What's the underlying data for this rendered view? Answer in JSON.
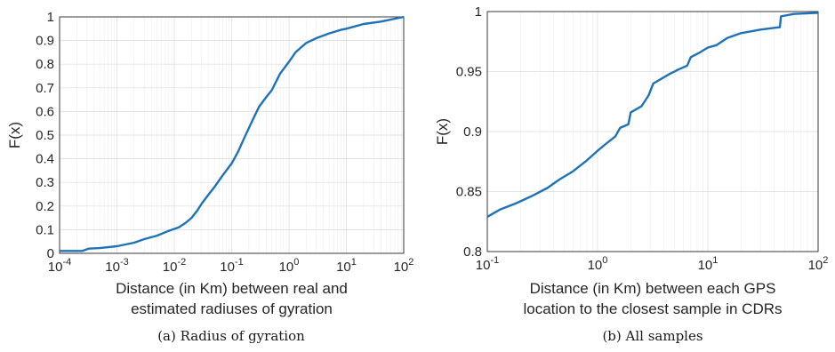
{
  "chart_data": [
    {
      "type": "line",
      "caption": "(a) Radius of gyration",
      "xlabel_lines": [
        "Distance (in Km) between real and",
        "estimated radiuses of gyration"
      ],
      "ylabel": "F(x)",
      "xscale": "log",
      "xlim": [
        0.0001,
        100
      ],
      "ylim": [
        0,
        1
      ],
      "grid": true,
      "xticks": [
        {
          "v": 0.0001,
          "base": "10",
          "exp": "-4"
        },
        {
          "v": 0.001,
          "base": "10",
          "exp": "-3"
        },
        {
          "v": 0.01,
          "base": "10",
          "exp": "-2"
        },
        {
          "v": 0.1,
          "base": "10",
          "exp": "-1"
        },
        {
          "v": 1,
          "base": "10",
          "exp": "0"
        },
        {
          "v": 10,
          "base": "10",
          "exp": "1"
        },
        {
          "v": 100,
          "base": "10",
          "exp": "2"
        }
      ],
      "yticks": [
        {
          "v": 0,
          "label": "0"
        },
        {
          "v": 0.1,
          "label": "0.1"
        },
        {
          "v": 0.2,
          "label": "0.2"
        },
        {
          "v": 0.3,
          "label": "0.3"
        },
        {
          "v": 0.4,
          "label": "0.4"
        },
        {
          "v": 0.5,
          "label": "0.5"
        },
        {
          "v": 0.6,
          "label": "0.6"
        },
        {
          "v": 0.7,
          "label": "0.7"
        },
        {
          "v": 0.8,
          "label": "0.8"
        },
        {
          "v": 0.9,
          "label": "0.9"
        },
        {
          "v": 1,
          "label": "1"
        }
      ],
      "series": [
        {
          "color": "#1f72b8",
          "x": [
            0.0001,
            0.00025,
            0.00032,
            0.0005,
            0.001,
            0.002,
            0.003,
            0.005,
            0.008,
            0.012,
            0.016,
            0.02,
            0.025,
            0.03,
            0.04,
            0.05,
            0.07,
            0.1,
            0.13,
            0.16,
            0.2,
            0.25,
            0.3,
            0.4,
            0.5,
            0.7,
            1.0,
            1.3,
            1.6,
            2.0,
            3.0,
            5.0,
            8.0,
            10,
            20,
            40,
            100
          ],
          "y": [
            0.01,
            0.01,
            0.02,
            0.022,
            0.03,
            0.045,
            0.06,
            0.075,
            0.095,
            0.11,
            0.13,
            0.15,
            0.18,
            0.21,
            0.25,
            0.28,
            0.33,
            0.38,
            0.43,
            0.48,
            0.53,
            0.58,
            0.62,
            0.66,
            0.69,
            0.76,
            0.81,
            0.85,
            0.87,
            0.89,
            0.91,
            0.93,
            0.945,
            0.95,
            0.97,
            0.98,
            1.0
          ]
        }
      ]
    },
    {
      "type": "line",
      "caption": "(b) All samples",
      "xlabel_lines": [
        "Distance (in Km) between each GPS",
        "location to the closest sample in CDRs"
      ],
      "ylabel": "F(x)",
      "xscale": "log",
      "xlim": [
        0.1,
        100
      ],
      "ylim": [
        0.8,
        1
      ],
      "grid": true,
      "xticks": [
        {
          "v": 0.1,
          "base": "10",
          "exp": "-1"
        },
        {
          "v": 1,
          "base": "10",
          "exp": "0"
        },
        {
          "v": 10,
          "base": "10",
          "exp": "1"
        },
        {
          "v": 100,
          "base": "10",
          "exp": "2"
        }
      ],
      "yticks": [
        {
          "v": 0.8,
          "label": "0.8"
        },
        {
          "v": 0.85,
          "label": "0.85"
        },
        {
          "v": 0.9,
          "label": "0.9"
        },
        {
          "v": 0.95,
          "label": "0.95"
        },
        {
          "v": 1,
          "label": "1"
        }
      ],
      "series": [
        {
          "color": "#1f72b8",
          "x": [
            0.1,
            0.13,
            0.18,
            0.25,
            0.35,
            0.45,
            0.6,
            0.8,
            1.0,
            1.2,
            1.45,
            1.6,
            1.9,
            2.0,
            2.5,
            2.9,
            3.2,
            3.8,
            4.5,
            5.5,
            6.5,
            7.0,
            8.5,
            10,
            12,
            15,
            20,
            30,
            45,
            46,
            60,
            100
          ],
          "y": [
            0.829,
            0.835,
            0.84,
            0.846,
            0.853,
            0.86,
            0.867,
            0.876,
            0.884,
            0.89,
            0.896,
            0.903,
            0.906,
            0.916,
            0.921,
            0.93,
            0.94,
            0.944,
            0.948,
            0.952,
            0.955,
            0.962,
            0.966,
            0.97,
            0.972,
            0.978,
            0.982,
            0.985,
            0.987,
            0.996,
            0.998,
            0.999
          ]
        }
      ]
    }
  ]
}
